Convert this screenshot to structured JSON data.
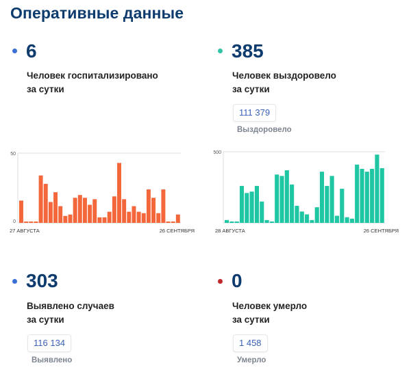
{
  "header": {
    "title": "Оперативные данные"
  },
  "stats": {
    "hospitalized": {
      "value": "6",
      "line1": "Человек госпитализировано",
      "line2": "за сутки",
      "dot_color": "#3a6fd8"
    },
    "recovered": {
      "value": "385",
      "line1": "Человек выздоровело",
      "line2": "за сутки",
      "total": "111 379",
      "total_label": "Выздоровело",
      "dot_color": "#2ec4a5"
    },
    "cases": {
      "value": "303",
      "line1": "Выявлено случаев",
      "line2": "за сутки",
      "total": "116 134",
      "total_label": "Выявлено",
      "dot_color": "#3a6fd8"
    },
    "deaths": {
      "value": "0",
      "line1": "Человек умерло",
      "line2": "за сутки",
      "total": "1 458",
      "total_label": "Умерло",
      "dot_color": "#c0282d"
    }
  },
  "chart_data": [
    {
      "type": "bar",
      "color": "#f4673b",
      "ylim": [
        0,
        50
      ],
      "ytick_labels": [
        "50",
        "0"
      ],
      "start_label": "27 АВГУСТА",
      "end_label": "26 СЕНТЯБРЯ",
      "values": [
        16,
        1,
        1,
        1,
        34,
        28,
        15,
        22,
        12,
        5,
        6,
        18,
        20,
        18,
        13,
        17,
        4,
        4,
        8,
        19,
        43,
        17,
        8,
        12,
        8,
        7,
        24,
        18,
        7,
        24,
        1,
        1,
        6
      ]
    },
    {
      "type": "bar",
      "color": "#1fc6a3",
      "ylim": [
        0,
        500
      ],
      "ytick_labels": [
        "500"
      ],
      "start_label": "28 АВГУСТА",
      "end_label": "26 СЕНТЯБРЯ",
      "values": [
        20,
        10,
        10,
        260,
        210,
        220,
        260,
        150,
        20,
        10,
        340,
        330,
        370,
        270,
        120,
        80,
        60,
        20,
        110,
        360,
        260,
        330,
        50,
        240,
        40,
        30,
        410,
        380,
        360,
        380,
        480,
        385
      ]
    }
  ]
}
